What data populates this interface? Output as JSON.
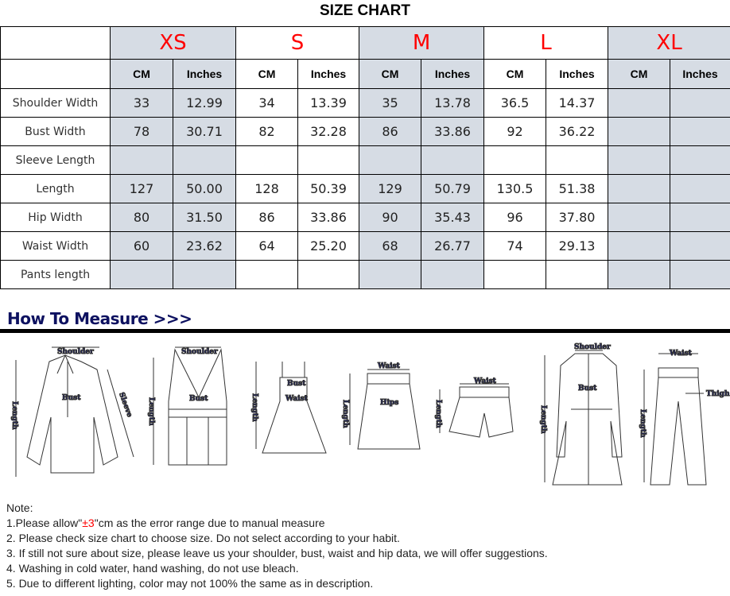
{
  "title": "SIZE CHART",
  "sizes": [
    "XS",
    "S",
    "M",
    "L",
    "XL"
  ],
  "units": [
    "CM",
    "Inches"
  ],
  "shaded": [
    true,
    false,
    true,
    false,
    true
  ],
  "rows": [
    {
      "label": "Shoulder Width",
      "values": [
        "33",
        "12.99",
        "34",
        "13.39",
        "35",
        "13.78",
        "36.5",
        "14.37",
        "",
        ""
      ]
    },
    {
      "label": "Bust Width",
      "values": [
        "78",
        "30.71",
        "82",
        "32.28",
        "86",
        "33.86",
        "92",
        "36.22",
        "",
        ""
      ]
    },
    {
      "label": "Sleeve Length",
      "values": [
        "",
        "",
        "",
        "",
        "",
        "",
        "",
        "",
        "",
        ""
      ]
    },
    {
      "label": "Length",
      "values": [
        "127",
        "50.00",
        "128",
        "50.39",
        "129",
        "50.79",
        "130.5",
        "51.38",
        "",
        ""
      ]
    },
    {
      "label": "Hip Width",
      "values": [
        "80",
        "31.50",
        "86",
        "33.86",
        "90",
        "35.43",
        "96",
        "37.80",
        "",
        ""
      ]
    },
    {
      "label": "Waist Width",
      "values": [
        "60",
        "23.62",
        "64",
        "25.20",
        "68",
        "26.77",
        "74",
        "29.13",
        "",
        ""
      ]
    },
    {
      "label": "Pants length",
      "values": [
        "",
        "",
        "",
        "",
        "",
        "",
        "",
        "",
        "",
        ""
      ]
    }
  ],
  "measure": {
    "heading": "How To Measure >>>",
    "labels": {
      "shoulder": "Shoulder",
      "length": "Length",
      "bust": "Bust",
      "sleeve": "Sleeve",
      "waist": "Waist",
      "hips": "Hips",
      "thigh": "Thigh"
    }
  },
  "notes": {
    "heading": "Note:",
    "n1_pre": "1.Please allow\"",
    "n1_red": "±3",
    "n1_post": "\"cm as the error range due to manual measure",
    "items": [
      "2. Please check size chart to choose size. Do not select according to your habit.",
      "3. If still not sure about size, please leave us your shoulder, bust, waist and hip data, we will offer suggestions.",
      "4. Washing in cold water, hand washing, do not use bleach.",
      "5. Due to different lighting, color may not 100% the same as in description."
    ]
  },
  "colors": {
    "size_label": "#ff0000",
    "shade": "#d6dce4",
    "heading": "#0d1160"
  }
}
